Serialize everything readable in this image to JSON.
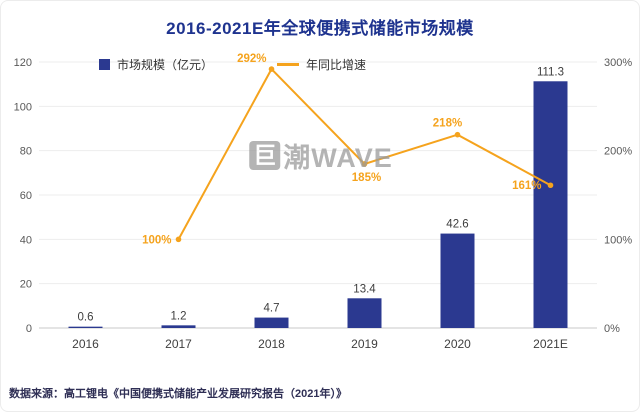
{
  "title": "2016-2021E年全球便携式储能市场规模",
  "watermark": {
    "logo": "巨",
    "text": "潮WAVE"
  },
  "source": "数据来源：高工锂电《中国便携式储能产业发展研究报告（2021年）》",
  "colors": {
    "bar": "#2B3990",
    "line": "#F5A31D",
    "title": "#1E338F",
    "source": "#2F2F55"
  },
  "chart_data": {
    "type": "bar",
    "subtype": "combo-bar-line",
    "title": "2016-2021E年全球便携式储能市场规模",
    "categories": [
      "2016",
      "2017",
      "2018",
      "2019",
      "2020",
      "2021E"
    ],
    "series": [
      {
        "name": "市场规模（亿元）",
        "type": "bar",
        "axis": "left",
        "values": [
          0.6,
          1.2,
          4.7,
          13.4,
          42.6,
          111.3
        ]
      },
      {
        "name": "年同比增速",
        "type": "line",
        "axis": "right",
        "unit": "%",
        "values": [
          null,
          100,
          292,
          185,
          218,
          161
        ]
      }
    ],
    "left_axis": {
      "min": 0,
      "max": 120,
      "step": 20,
      "ticks": [
        0,
        20,
        40,
        60,
        80,
        100,
        120
      ]
    },
    "right_axis": {
      "min": 0,
      "max": 300,
      "step": 100,
      "suffix": "%",
      "ticks": [
        "0%",
        "100%",
        "200%",
        "300%"
      ]
    },
    "legend_position": "top",
    "grid": true
  }
}
